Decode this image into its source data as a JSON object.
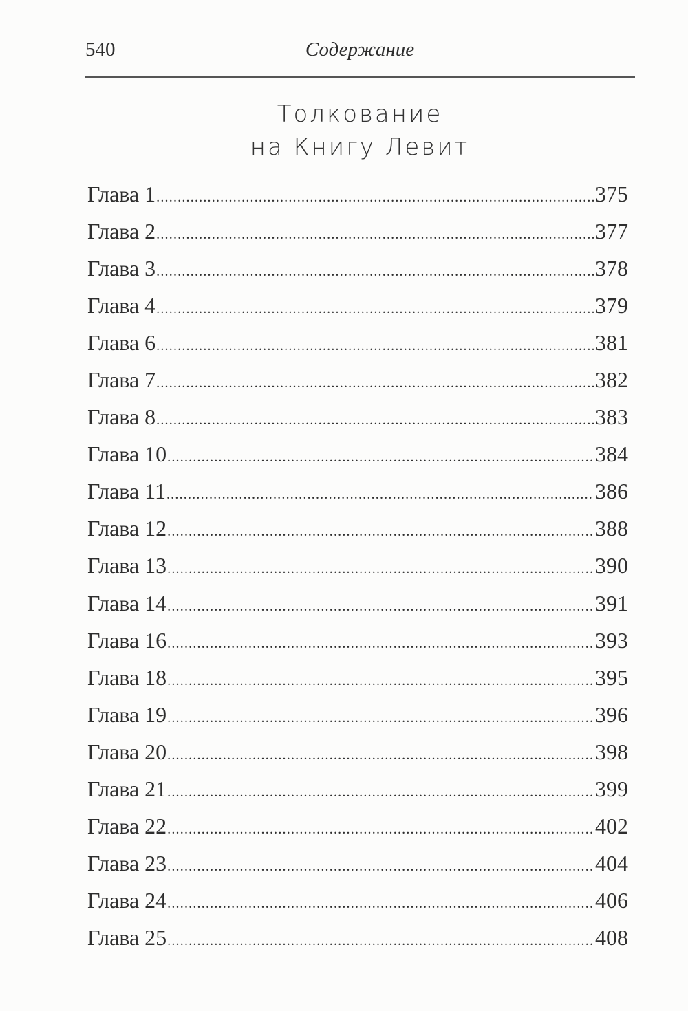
{
  "header": {
    "page_number": "540",
    "running_title": "Содержание"
  },
  "section": {
    "title_line1": "Толкование",
    "title_line2": "на Книгу Левит"
  },
  "entries": [
    {
      "label": "Глава 1",
      "page": "375"
    },
    {
      "label": "Глава 2",
      "page": "377"
    },
    {
      "label": "Глава 3",
      "page": "378"
    },
    {
      "label": "Глава 4",
      "page": "379"
    },
    {
      "label": "Глава 6",
      "page": "381"
    },
    {
      "label": "Глава 7",
      "page": "382"
    },
    {
      "label": "Глава 8",
      "page": "383"
    },
    {
      "label": "Глава 10",
      "page": "384"
    },
    {
      "label": "Глава 11",
      "page": "386"
    },
    {
      "label": "Глава 12",
      "page": "388"
    },
    {
      "label": "Глава 13",
      "page": "390"
    },
    {
      "label": "Глава 14",
      "page": "391"
    },
    {
      "label": "Глава 16",
      "page": "393"
    },
    {
      "label": "Глава 18",
      "page": "395"
    },
    {
      "label": "Глава 19",
      "page": "396"
    },
    {
      "label": "Глава 20",
      "page": "398"
    },
    {
      "label": "Глава 21",
      "page": "399"
    },
    {
      "label": "Глава 22",
      "page": "402"
    },
    {
      "label": "Глава 23",
      "page": "404"
    },
    {
      "label": "Глава 24",
      "page": "406"
    },
    {
      "label": "Глава 25",
      "page": "408"
    }
  ]
}
